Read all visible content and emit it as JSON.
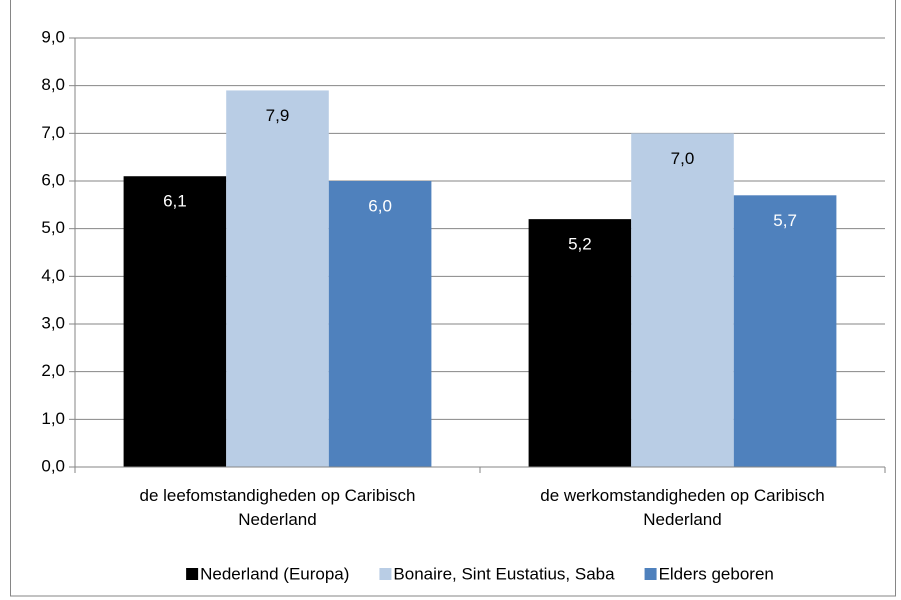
{
  "chart_data": {
    "type": "bar",
    "categories": [
      "de leefomstandigheden op Caribisch Nederland",
      "de werkomstandigheden op Caribisch Nederland"
    ],
    "series": [
      {
        "name": "Nederland (Europa)",
        "color": "#000000",
        "values": [
          6.1,
          5.2
        ],
        "value_labels": [
          "6,1",
          "5,2"
        ]
      },
      {
        "name": "Bonaire, Sint Eustatius, Saba",
        "color": "#b9cde5",
        "values": [
          7.9,
          7.0
        ],
        "value_labels": [
          "7,9",
          "7,0"
        ]
      },
      {
        "name": "Elders geboren",
        "color": "#4f81bd",
        "values": [
          6.0,
          5.7
        ],
        "value_labels": [
          "6,0",
          "5,7"
        ]
      }
    ],
    "ylim": [
      0,
      9
    ],
    "yticks": [
      {
        "value": 0,
        "label": "0,0"
      },
      {
        "value": 1,
        "label": "1,0"
      },
      {
        "value": 2,
        "label": "2,0"
      },
      {
        "value": 3,
        "label": "3,0"
      },
      {
        "value": 4,
        "label": "4,0"
      },
      {
        "value": 5,
        "label": "5,0"
      },
      {
        "value": 6,
        "label": "6,0"
      },
      {
        "value": 7,
        "label": "7,0"
      },
      {
        "value": 8,
        "label": "8,0"
      },
      {
        "value": 9,
        "label": "9,0"
      }
    ],
    "grid": true,
    "legend": "bottom"
  }
}
